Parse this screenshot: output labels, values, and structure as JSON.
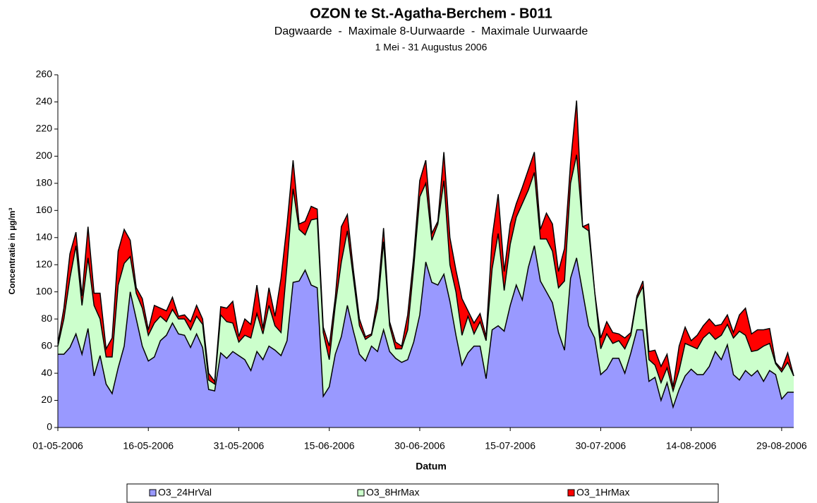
{
  "chart_data": {
    "type": "area",
    "title": "OZON te St.-Agatha-Berchem - B011",
    "subtitle": "Dagwaarde  -  Maximale 8-Uurwaarde  -  Maximale Uurwaarde",
    "period": "1 Mei - 31 Augustus 2006",
    "x_label": "Datum",
    "y_label": "Concentratie in µg/m³",
    "x": [
      "01-05-2006",
      null,
      null,
      null,
      null,
      null,
      null,
      null,
      null,
      null,
      null,
      null,
      null,
      null,
      null,
      "16-05-2006",
      null,
      null,
      null,
      null,
      null,
      null,
      null,
      null,
      null,
      null,
      null,
      null,
      null,
      null,
      "31-05-2006",
      null,
      null,
      null,
      null,
      null,
      null,
      null,
      null,
      null,
      null,
      null,
      null,
      null,
      null,
      "15-06-2006",
      null,
      null,
      null,
      null,
      null,
      null,
      null,
      null,
      null,
      null,
      null,
      null,
      null,
      null,
      "30-06-2006",
      null,
      null,
      null,
      null,
      null,
      null,
      null,
      null,
      null,
      null,
      null,
      null,
      null,
      null,
      "15-07-2006",
      null,
      null,
      null,
      null,
      null,
      null,
      null,
      null,
      null,
      null,
      null,
      null,
      null,
      null,
      "30-07-2006",
      null,
      null,
      null,
      null,
      null,
      null,
      null,
      null,
      null,
      null,
      null,
      null,
      null,
      null,
      "14-08-2006",
      null,
      null,
      null,
      null,
      null,
      null,
      null,
      null,
      null,
      null,
      null,
      null,
      null,
      null,
      "29-08-2006",
      null,
      null
    ],
    "series": [
      {
        "name": "O3_24HrVal",
        "color": "#9999ff",
        "values": [
          54,
          54,
          59,
          69,
          54,
          73,
          38,
          53,
          32,
          25,
          44,
          60,
          100,
          80,
          60,
          49,
          52,
          64,
          68,
          77,
          69,
          68,
          59,
          69,
          59,
          28,
          27,
          55,
          51,
          56,
          53,
          50,
          42,
          56,
          50,
          60,
          57,
          53,
          64,
          107,
          108,
          116,
          105,
          103,
          23,
          30,
          54,
          67,
          90,
          71,
          54,
          49,
          60,
          56,
          72,
          56,
          51,
          48,
          50,
          63,
          83,
          122,
          107,
          105,
          113,
          93,
          68,
          46,
          55,
          60,
          60,
          36,
          72,
          75,
          71,
          90,
          105,
          94,
          118,
          134,
          108,
          100,
          92,
          70,
          57,
          110,
          125,
          100,
          75,
          66,
          39,
          43,
          51,
          51,
          40,
          55,
          72,
          72,
          34,
          37,
          20,
          33,
          15,
          28,
          38,
          43,
          39,
          39,
          45,
          56,
          50,
          61,
          39,
          35,
          42,
          38,
          42,
          34,
          42,
          39,
          21,
          26,
          26
        ]
      },
      {
        "name": "O3_8HrMax",
        "color": "#ccffcc",
        "values": [
          60,
          80,
          110,
          134,
          90,
          125,
          90,
          80,
          52,
          52,
          105,
          121,
          126,
          99,
          88,
          68,
          77,
          82,
          78,
          87,
          80,
          80,
          72,
          82,
          76,
          35,
          32,
          83,
          78,
          77,
          63,
          68,
          66,
          84,
          69,
          90,
          75,
          70,
          120,
          176,
          146,
          142,
          153,
          154,
          70,
          50,
          90,
          122,
          145,
          110,
          75,
          65,
          68,
          88,
          137,
          75,
          58,
          58,
          72,
          118,
          170,
          180,
          138,
          150,
          182,
          120,
          100,
          68,
          82,
          69,
          78,
          64,
          117,
          143,
          101,
          135,
          155,
          165,
          175,
          188,
          139,
          139,
          130,
          103,
          108,
          180,
          201,
          148,
          145,
          100,
          58,
          69,
          62,
          64,
          58,
          68,
          95,
          104,
          50,
          46,
          33,
          44,
          27,
          42,
          62,
          60,
          58,
          66,
          70,
          65,
          68,
          76,
          66,
          71,
          68,
          56,
          57,
          60,
          62,
          47,
          41,
          48,
          38
        ]
      },
      {
        "name": "O3_1HrMax",
        "color": "#ff0000",
        "values": [
          62,
          88,
          128,
          144,
          97,
          148,
          99,
          99,
          58,
          66,
          130,
          146,
          138,
          103,
          95,
          72,
          90,
          88,
          86,
          96,
          82,
          83,
          78,
          90,
          80,
          40,
          34,
          89,
          88,
          93,
          67,
          80,
          76,
          105,
          73,
          103,
          82,
          110,
          150,
          197,
          150,
          152,
          163,
          161,
          74,
          60,
          96,
          148,
          157,
          116,
          80,
          67,
          69,
          95,
          147,
          78,
          63,
          60,
          83,
          126,
          182,
          197,
          143,
          152,
          203,
          140,
          116,
          95,
          86,
          77,
          84,
          67,
          140,
          172,
          115,
          150,
          165,
          177,
          190,
          203,
          146,
          158,
          150,
          115,
          132,
          195,
          241,
          148,
          150,
          100,
          66,
          78,
          70,
          69,
          66,
          70,
          97,
          108,
          56,
          57,
          45,
          54,
          30,
          60,
          74,
          64,
          68,
          75,
          80,
          75,
          76,
          83,
          70,
          83,
          88,
          69,
          72,
          72,
          73,
          48,
          43,
          55,
          38
        ]
      }
    ],
    "ylim": [
      0,
      260
    ],
    "yticks": [
      0,
      20,
      40,
      60,
      80,
      100,
      120,
      140,
      160,
      180,
      200,
      220,
      240,
      260
    ],
    "legend": "bottom"
  }
}
